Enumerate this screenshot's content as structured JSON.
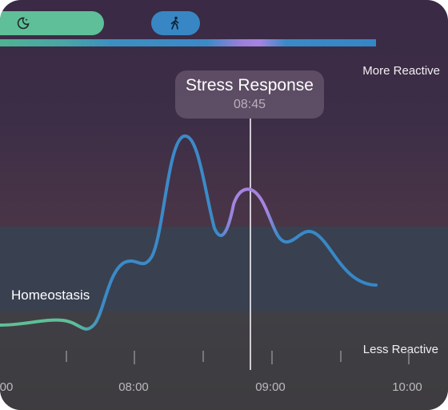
{
  "activity_bar": {
    "sleep_icon": "moon-sleep-icon",
    "walk_icon": "walking-person-icon"
  },
  "labels": {
    "more_reactive": "More Reactive",
    "less_reactive": "Less Reactive",
    "homeostasis": "Homeostasis"
  },
  "tooltip": {
    "title": "Stress Response",
    "time": "08:45"
  },
  "time_axis": {
    "ticks": [
      "00",
      "08:00",
      "09:00",
      "10:00"
    ]
  },
  "colors": {
    "calm": "#5fbf98",
    "active": "#3887c4",
    "stress": "#a584e0"
  }
}
